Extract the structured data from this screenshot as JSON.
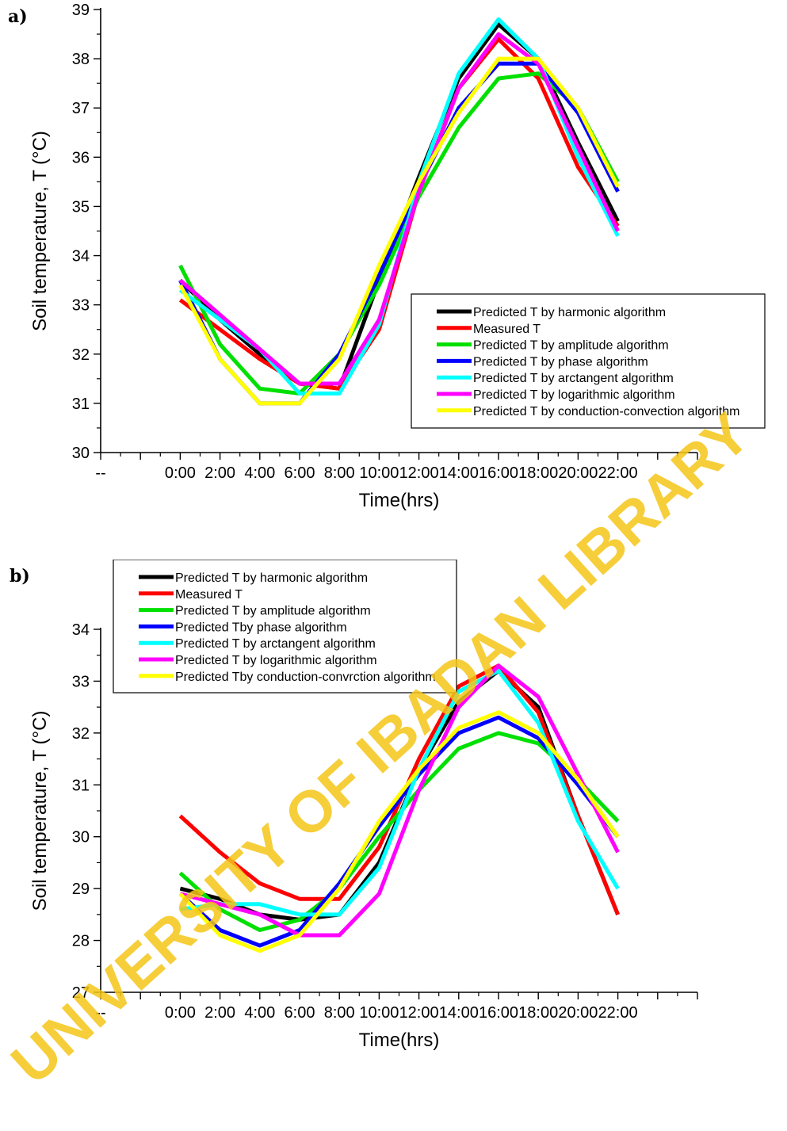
{
  "panels": [
    {
      "label": "a)"
    },
    {
      "label": "b)"
    }
  ],
  "watermark": {
    "text": "UNIVERSITY OF IBADAN LIBRARY",
    "color": "#f5c518"
  },
  "chart_data": [
    {
      "type": "line",
      "title": "",
      "xlabel": "Time(hrs)",
      "ylabel": "Soil temperature, T (°C)",
      "categories": [
        "0:00",
        "2:00",
        "4:00",
        "6:00",
        "8:00",
        "10:00",
        "12:00",
        "14:00",
        "16:00",
        "18:00",
        "20:00",
        "22:00"
      ],
      "x_ticks_leading": "--",
      "ylim": [
        30,
        39
      ],
      "yticks": [
        30,
        31,
        32,
        33,
        34,
        35,
        36,
        37,
        38,
        39
      ],
      "legend_position": "center-right",
      "series": [
        {
          "name": "Predicted T by harmonic algorithm",
          "color": "#000000",
          "values": [
            33.5,
            32.7,
            32.0,
            31.4,
            31.3,
            33.5,
            35.6,
            37.6,
            38.7,
            38.0,
            36.3,
            34.7
          ]
        },
        {
          "name": "Measured T",
          "color": "#ff0000",
          "values": [
            33.1,
            32.5,
            31.9,
            31.4,
            31.3,
            32.5,
            35.3,
            37.4,
            38.4,
            37.6,
            35.8,
            34.6
          ]
        },
        {
          "name": "Predicted T by amplitude algorithm",
          "color": "#00e000",
          "values": [
            33.8,
            32.2,
            31.3,
            31.2,
            32.0,
            33.4,
            35.2,
            36.6,
            37.6,
            37.7,
            37.0,
            35.5
          ]
        },
        {
          "name": "Predicted T by phase algorithm",
          "color": "#0000ff",
          "values": [
            33.5,
            31.9,
            31.0,
            31.0,
            32.0,
            33.6,
            35.4,
            37.0,
            37.9,
            37.9,
            36.9,
            35.3
          ]
        },
        {
          "name": "Predicted T by arctangent algorithm",
          "color": "#00ffff",
          "values": [
            33.3,
            32.7,
            32.1,
            31.2,
            31.2,
            32.6,
            35.5,
            37.7,
            38.8,
            38.0,
            36.0,
            34.4
          ]
        },
        {
          "name": "Predicted T by logarithmic algorithm",
          "color": "#ff00ff",
          "values": [
            33.5,
            32.8,
            32.1,
            31.4,
            31.4,
            32.7,
            35.3,
            37.4,
            38.5,
            37.9,
            36.2,
            34.5
          ]
        },
        {
          "name": "Predicted T by conduction-convection algorithm",
          "color": "#ffff00",
          "values": [
            33.4,
            31.9,
            31.0,
            31.0,
            31.9,
            33.8,
            35.5,
            36.9,
            38.0,
            38.0,
            37.0,
            35.4
          ]
        }
      ]
    },
    {
      "type": "line",
      "title": "",
      "xlabel": "Time(hrs)",
      "ylabel": "Soil temperature, T (°C)",
      "categories": [
        "0:00",
        "2:00",
        "4:00",
        "6:00",
        "8:00",
        "10:00",
        "12:00",
        "14:00",
        "16:00",
        "18:00",
        "20:00",
        "22:00"
      ],
      "x_ticks_leading": "--",
      "ylim": [
        27,
        34
      ],
      "yticks": [
        27,
        28,
        29,
        30,
        31,
        32,
        33,
        34
      ],
      "legend_position": "top-left",
      "series": [
        {
          "name": "Predicted T by harmonic algorithm",
          "color": "#000000",
          "values": [
            29.0,
            28.8,
            28.5,
            28.4,
            28.5,
            29.5,
            31.3,
            32.6,
            33.2,
            32.5,
            30.4,
            28.5
          ]
        },
        {
          "name": "Measured T",
          "color": "#ff0000",
          "values": [
            30.4,
            29.7,
            29.1,
            28.8,
            28.8,
            29.8,
            31.5,
            32.9,
            33.3,
            32.4,
            30.4,
            28.5
          ]
        },
        {
          "name": "Predicted T by amplitude algorithm",
          "color": "#00e000",
          "values": [
            29.3,
            28.6,
            28.2,
            28.4,
            29.0,
            30.0,
            30.9,
            31.7,
            32.0,
            31.8,
            31.1,
            30.3
          ]
        },
        {
          "name": "Predicted Tby phase algorithm",
          "color": "#0000ff",
          "values": [
            28.9,
            28.2,
            27.9,
            28.2,
            29.1,
            30.2,
            31.2,
            32.0,
            32.3,
            31.9,
            31.0,
            30.0
          ]
        },
        {
          "name": "Predicted T by arctangent algorithm",
          "color": "#00ffff",
          "values": [
            28.6,
            28.7,
            28.7,
            28.5,
            28.5,
            29.4,
            31.3,
            32.8,
            33.2,
            32.2,
            30.3,
            29.0
          ]
        },
        {
          "name": "Predicted T by logarithmic algorithm",
          "color": "#ff00ff",
          "values": [
            28.9,
            28.7,
            28.5,
            28.1,
            28.1,
            28.9,
            30.9,
            32.5,
            33.3,
            32.7,
            31.2,
            29.7
          ]
        },
        {
          "name": "Predicted Tby conduction-convrction algorithm",
          "color": "#ffff00",
          "values": [
            28.9,
            28.1,
            27.8,
            28.1,
            29.0,
            30.3,
            31.3,
            32.1,
            32.4,
            32.0,
            31.1,
            30.0
          ]
        }
      ]
    }
  ]
}
